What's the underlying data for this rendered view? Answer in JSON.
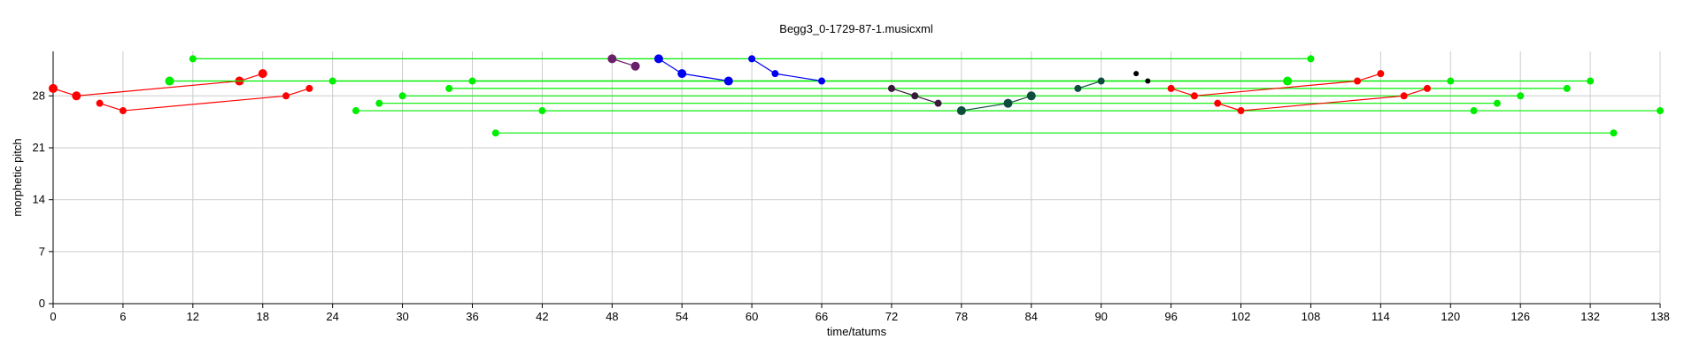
{
  "chart_data": {
    "type": "scatter",
    "title": "Begg3_0-1729-87-1.musicxml",
    "xlabel": "time/tatums",
    "ylabel": "morphetic pitch",
    "xlim": [
      0,
      138
    ],
    "ylim": [
      0,
      34
    ],
    "xticks": [
      0,
      6,
      12,
      18,
      24,
      30,
      36,
      42,
      48,
      54,
      60,
      66,
      72,
      78,
      84,
      90,
      96,
      102,
      108,
      114,
      120,
      126,
      132,
      138
    ],
    "yticks": [
      0,
      7,
      14,
      21,
      28
    ],
    "grid": true,
    "legend": "none",
    "series": [
      {
        "name": "red-1",
        "color": "#ff0000",
        "lines": [
          [
            [
              0,
              29
            ],
            [
              2,
              28
            ],
            [
              16,
              30
            ],
            [
              18,
              31
            ]
          ],
          [
            [
              4,
              27
            ],
            [
              6,
              26
            ],
            [
              20,
              28
            ],
            [
              22,
              29
            ]
          ]
        ],
        "points": [
          {
            "x": 0,
            "y": 29,
            "r": 5
          },
          {
            "x": 2,
            "y": 28,
            "r": 5
          },
          {
            "x": 16,
            "y": 30,
            "r": 5
          },
          {
            "x": 18,
            "y": 31,
            "r": 5
          },
          {
            "x": 4,
            "y": 27,
            "r": 4
          },
          {
            "x": 6,
            "y": 26,
            "r": 4
          },
          {
            "x": 20,
            "y": 28,
            "r": 4
          },
          {
            "x": 22,
            "y": 29,
            "r": 4
          }
        ]
      },
      {
        "name": "green-1",
        "color": "#00ee00",
        "lines": [
          [
            [
              12,
              33
            ],
            [
              108,
              33
            ]
          ],
          [
            [
              10,
              30
            ],
            [
              106,
              30
            ]
          ],
          [
            [
              24,
              30
            ],
            [
              120,
              30
            ]
          ],
          [
            [
              36,
              30
            ],
            [
              132,
              30
            ]
          ],
          [
            [
              34,
              29
            ],
            [
              130,
              29
            ]
          ],
          [
            [
              30,
              28
            ],
            [
              126,
              28
            ]
          ],
          [
            [
              28,
              27
            ],
            [
              124,
              27
            ]
          ],
          [
            [
              26,
              26
            ],
            [
              122,
              26
            ]
          ],
          [
            [
              42,
              26
            ],
            [
              138,
              26
            ]
          ],
          [
            [
              38,
              23
            ],
            [
              134,
              23
            ]
          ]
        ],
        "points": [
          {
            "x": 12,
            "y": 33,
            "r": 4
          },
          {
            "x": 108,
            "y": 33,
            "r": 4
          },
          {
            "x": 10,
            "y": 30,
            "r": 5
          },
          {
            "x": 106,
            "y": 30,
            "r": 5
          },
          {
            "x": 24,
            "y": 30,
            "r": 4
          },
          {
            "x": 120,
            "y": 30,
            "r": 4
          },
          {
            "x": 36,
            "y": 30,
            "r": 4
          },
          {
            "x": 132,
            "y": 30,
            "r": 4
          },
          {
            "x": 34,
            "y": 29,
            "r": 4
          },
          {
            "x": 130,
            "y": 29,
            "r": 4
          },
          {
            "x": 30,
            "y": 28,
            "r": 4
          },
          {
            "x": 126,
            "y": 28,
            "r": 4
          },
          {
            "x": 28,
            "y": 27,
            "r": 4
          },
          {
            "x": 124,
            "y": 27,
            "r": 4
          },
          {
            "x": 26,
            "y": 26,
            "r": 4
          },
          {
            "x": 122,
            "y": 26,
            "r": 4
          },
          {
            "x": 42,
            "y": 26,
            "r": 4
          },
          {
            "x": 138,
            "y": 26,
            "r": 4
          },
          {
            "x": 38,
            "y": 23,
            "r": 4
          },
          {
            "x": 134,
            "y": 23,
            "r": 4
          }
        ]
      },
      {
        "name": "purple",
        "color": "#6a1f6a",
        "lines": [
          [
            [
              48,
              33
            ],
            [
              50,
              32
            ]
          ]
        ],
        "points": [
          {
            "x": 48,
            "y": 33,
            "r": 5
          },
          {
            "x": 50,
            "y": 32,
            "r": 5
          }
        ]
      },
      {
        "name": "blue",
        "color": "#0000ee",
        "lines": [
          [
            [
              52,
              33
            ],
            [
              54,
              31
            ],
            [
              58,
              30
            ]
          ],
          [
            [
              60,
              33
            ],
            [
              62,
              31
            ],
            [
              66,
              30
            ]
          ]
        ],
        "points": [
          {
            "x": 52,
            "y": 33,
            "r": 5
          },
          {
            "x": 54,
            "y": 31,
            "r": 5
          },
          {
            "x": 58,
            "y": 30,
            "r": 5
          },
          {
            "x": 60,
            "y": 33,
            "r": 4
          },
          {
            "x": 62,
            "y": 31,
            "r": 4
          },
          {
            "x": 66,
            "y": 30,
            "r": 4
          }
        ]
      },
      {
        "name": "dark-purple",
        "color": "#3a1a3a",
        "lines": [
          [
            [
              72,
              29
            ],
            [
              74,
              28
            ],
            [
              76,
              27
            ]
          ]
        ],
        "points": [
          {
            "x": 72,
            "y": 29,
            "r": 4
          },
          {
            "x": 74,
            "y": 28,
            "r": 4
          },
          {
            "x": 76,
            "y": 27,
            "r": 4
          }
        ]
      },
      {
        "name": "teal",
        "color": "#0d4d3d",
        "lines": [
          [
            [
              78,
              26
            ],
            [
              82,
              27
            ],
            [
              84,
              28
            ]
          ],
          [
            [
              88,
              29
            ],
            [
              90,
              30
            ]
          ]
        ],
        "points": [
          {
            "x": 78,
            "y": 26,
            "r": 5
          },
          {
            "x": 82,
            "y": 27,
            "r": 5
          },
          {
            "x": 84,
            "y": 28,
            "r": 5
          },
          {
            "x": 88,
            "y": 29,
            "r": 4
          },
          {
            "x": 90,
            "y": 30,
            "r": 4
          }
        ]
      },
      {
        "name": "black",
        "color": "#000000",
        "lines": [],
        "points": [
          {
            "x": 93,
            "y": 31,
            "r": 3
          },
          {
            "x": 94,
            "y": 30,
            "r": 3
          }
        ]
      },
      {
        "name": "red-2",
        "color": "#ff0000",
        "lines": [
          [
            [
              96,
              29
            ],
            [
              98,
              28
            ],
            [
              112,
              30
            ],
            [
              114,
              31
            ]
          ],
          [
            [
              100,
              27
            ],
            [
              102,
              26
            ],
            [
              116,
              28
            ],
            [
              118,
              29
            ]
          ]
        ],
        "points": [
          {
            "x": 96,
            "y": 29,
            "r": 4
          },
          {
            "x": 98,
            "y": 28,
            "r": 4
          },
          {
            "x": 112,
            "y": 30,
            "r": 4
          },
          {
            "x": 114,
            "y": 31,
            "r": 4
          },
          {
            "x": 100,
            "y": 27,
            "r": 4
          },
          {
            "x": 102,
            "y": 26,
            "r": 4
          },
          {
            "x": 116,
            "y": 28,
            "r": 4
          },
          {
            "x": 118,
            "y": 29,
            "r": 4
          }
        ]
      }
    ]
  }
}
